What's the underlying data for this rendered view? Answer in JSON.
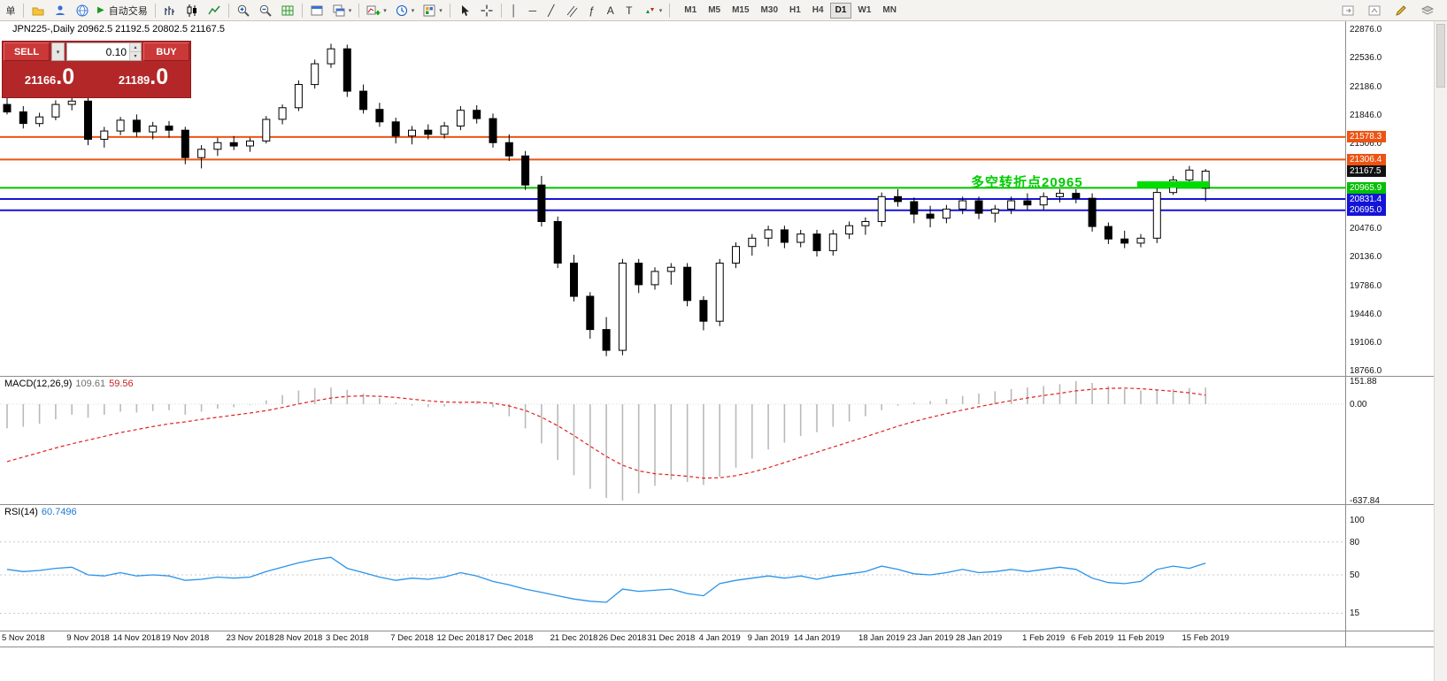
{
  "icons": {
    "dropdown": "▾",
    "play": "▶",
    "vline": "│",
    "hline": "─",
    "trendline": "╱",
    "fibonacci": "ƒ",
    "text_tool": "A",
    "label_tool": "T",
    "spin_up": "▴",
    "spin_down": "▾"
  },
  "toolbar": {
    "order_label": "单",
    "auto_trading_label": "自动交易",
    "timeframes": [
      "M1",
      "M5",
      "M15",
      "M30",
      "H1",
      "H4",
      "D1",
      "W1",
      "MN"
    ],
    "active_timeframe": "D1"
  },
  "chart": {
    "title": "JPN225-,Daily 20962.5 21192.5 20802.5 21167.5",
    "symbol": "JPN225-",
    "period": "Daily",
    "annotation": "多空转折点20965",
    "annotation_color": "#00CC00",
    "trade_panel": {
      "sell_label": "SELL",
      "buy_label": "BUY",
      "lot_value": "0.10",
      "sell_price_small": "21166",
      "sell_price_big": ".0",
      "buy_price_small": "21189",
      "buy_price_big": ".0"
    },
    "y_axis_labels": [
      "22876.0",
      "22536.0",
      "22186.0",
      "21846.0",
      "21506.0",
      "20476.0",
      "20136.0",
      "19786.0",
      "19446.0",
      "19106.0",
      "18766.0"
    ],
    "levels": [
      {
        "label": "21578.3",
        "price": 21578.3,
        "color": "#ED5413",
        "line": true
      },
      {
        "label": "21306.4",
        "price": 21306.4,
        "color": "#ED5413",
        "line": true
      },
      {
        "label": "21167.5",
        "price": 21167.5,
        "color": "#111111",
        "line": false
      },
      {
        "label": "20965.9",
        "price": 20965.9,
        "color": "#00C000",
        "line": true
      },
      {
        "label": "20831.4",
        "price": 20831.4,
        "color": "#1414D8",
        "line": true
      },
      {
        "label": "20695.0",
        "price": 20695.0,
        "color": "#1414D8",
        "line": true
      }
    ],
    "highlight": {
      "from_index": 70,
      "to_index": 74,
      "price_top": 21045,
      "price_bottom": 20966,
      "color": "#00DE00"
    }
  },
  "macd": {
    "name": "MACD(12,26,9)",
    "value_main": "109.61",
    "value_signal": "59.56",
    "axis_labels": [
      "151.88",
      "0.00",
      "-637.84"
    ]
  },
  "rsi": {
    "name": "RSI(14)",
    "value": "60.7496",
    "axis_labels": [
      "100",
      "80",
      "50",
      "15"
    ]
  },
  "chart_data": [
    {
      "type": "candlestick",
      "title": "JPN225- Daily",
      "ohlc_current": {
        "open": 20962.5,
        "high": 21192.5,
        "low": 20802.5,
        "close": 21167.5
      },
      "ylim": [
        18766.0,
        22876.0
      ],
      "x_labels": [
        "5 Nov 2018",
        "9 Nov 2018",
        "14 Nov 2018",
        "19 Nov 2018",
        "23 Nov 2018",
        "28 Nov 2018",
        "3 Dec 2018",
        "7 Dec 2018",
        "12 Dec 2018",
        "17 Dec 2018",
        "21 Dec 2018",
        "26 Dec 2018",
        "31 Dec 2018",
        "4 Jan 2019",
        "9 Jan 2019",
        "14 Jan 2019",
        "18 Jan 2019",
        "23 Jan 2019",
        "28 Jan 2019",
        "1 Feb 2019",
        "6 Feb 2019",
        "11 Feb 2019",
        "15 Feb 2019"
      ],
      "x_label_indices": [
        1,
        5,
        8,
        11,
        15,
        18,
        21,
        25,
        28,
        31,
        35,
        38,
        41,
        44,
        47,
        50,
        54,
        57,
        60,
        64,
        67,
        70,
        74
      ],
      "candles": [
        [
          21970,
          22050,
          21850,
          21880
        ],
        [
          21880,
          21950,
          21680,
          21740
        ],
        [
          21740,
          21870,
          21700,
          21820
        ],
        [
          21820,
          22020,
          21780,
          21970
        ],
        [
          21970,
          22060,
          21900,
          22010
        ],
        [
          22010,
          22050,
          21480,
          21550
        ],
        [
          21550,
          21700,
          21450,
          21650
        ],
        [
          21650,
          21820,
          21600,
          21780
        ],
        [
          21780,
          21850,
          21580,
          21640
        ],
        [
          21640,
          21760,
          21550,
          21710
        ],
        [
          21710,
          21770,
          21570,
          21660
        ],
        [
          21660,
          21700,
          21250,
          21330
        ],
        [
          21330,
          21480,
          21200,
          21430
        ],
        [
          21430,
          21570,
          21350,
          21510
        ],
        [
          21510,
          21590,
          21420,
          21470
        ],
        [
          21470,
          21570,
          21400,
          21530
        ],
        [
          21530,
          21830,
          21500,
          21790
        ],
        [
          21790,
          21970,
          21730,
          21930
        ],
        [
          21930,
          22260,
          21890,
          22210
        ],
        [
          22210,
          22510,
          22160,
          22460
        ],
        [
          22460,
          22700,
          22410,
          22640
        ],
        [
          22640,
          22690,
          22060,
          22130
        ],
        [
          22130,
          22210,
          21860,
          21910
        ],
        [
          21910,
          21990,
          21700,
          21760
        ],
        [
          21760,
          21810,
          21500,
          21590
        ],
        [
          21590,
          21710,
          21490,
          21660
        ],
        [
          21660,
          21730,
          21550,
          21610
        ],
        [
          21610,
          21760,
          21560,
          21710
        ],
        [
          21710,
          21950,
          21660,
          21900
        ],
        [
          21900,
          21960,
          21740,
          21800
        ],
        [
          21800,
          21860,
          21450,
          21510
        ],
        [
          21510,
          21610,
          21290,
          21350
        ],
        [
          21350,
          21410,
          20940,
          21000
        ],
        [
          21000,
          21110,
          20500,
          20560
        ],
        [
          20560,
          20620,
          20000,
          20060
        ],
        [
          20060,
          20160,
          19600,
          19660
        ],
        [
          19660,
          19710,
          19150,
          19260
        ],
        [
          19260,
          19410,
          18940,
          19010
        ],
        [
          19010,
          20110,
          18950,
          20060
        ],
        [
          20060,
          20110,
          19700,
          19800
        ],
        [
          19800,
          20010,
          19740,
          19960
        ],
        [
          19960,
          20060,
          19800,
          20010
        ],
        [
          20010,
          20060,
          19540,
          19610
        ],
        [
          19610,
          19660,
          19250,
          19360
        ],
        [
          19360,
          20110,
          19300,
          20060
        ],
        [
          20060,
          20310,
          20000,
          20260
        ],
        [
          20260,
          20410,
          20150,
          20360
        ],
        [
          20360,
          20510,
          20260,
          20460
        ],
        [
          20460,
          20510,
          20240,
          20310
        ],
        [
          20310,
          20460,
          20250,
          20410
        ],
        [
          20410,
          20460,
          20140,
          20210
        ],
        [
          20210,
          20460,
          20150,
          20410
        ],
        [
          20410,
          20560,
          20350,
          20510
        ],
        [
          20510,
          20610,
          20400,
          20560
        ],
        [
          20560,
          20910,
          20500,
          20860
        ],
        [
          20860,
          20950,
          20740,
          20800
        ],
        [
          20800,
          20850,
          20540,
          20650
        ],
        [
          20650,
          20750,
          20490,
          20600
        ],
        [
          20600,
          20760,
          20540,
          20710
        ],
        [
          20710,
          20860,
          20650,
          20810
        ],
        [
          20810,
          20860,
          20590,
          20660
        ],
        [
          20660,
          20760,
          20550,
          20710
        ],
        [
          20710,
          20860,
          20650,
          20810
        ],
        [
          20810,
          20900,
          20700,
          20760
        ],
        [
          20760,
          20910,
          20700,
          20860
        ],
        [
          20860,
          20950,
          20790,
          20900
        ],
        [
          20900,
          20950,
          20780,
          20840
        ],
        [
          20840,
          20900,
          20440,
          20500
        ],
        [
          20500,
          20550,
          20290,
          20350
        ],
        [
          20350,
          20450,
          20240,
          20300
        ],
        [
          20300,
          20410,
          20250,
          20360
        ],
        [
          20360,
          20960,
          20300,
          20910
        ],
        [
          20910,
          21110,
          20880,
          21060
        ],
        [
          21060,
          21230,
          21000,
          21180
        ],
        [
          20962.5,
          21192.5,
          20802.5,
          21167.5
        ]
      ]
    },
    {
      "type": "bar",
      "name": "MACD(12,26,9)",
      "ylim": [
        -637.84,
        151.88
      ],
      "current": {
        "macd": 109.61,
        "signal": 59.56
      },
      "histogram": [
        -160,
        -150,
        -130,
        -100,
        -70,
        -90,
        -70,
        -50,
        -55,
        -45,
        -40,
        -70,
        -50,
        -30,
        -20,
        -5,
        25,
        60,
        90,
        105,
        110,
        95,
        70,
        40,
        10,
        -10,
        -20,
        -15,
        5,
        20,
        -20,
        -80,
        -160,
        -260,
        -370,
        -470,
        -560,
        -620,
        -637.84,
        -590,
        -540,
        -500,
        -515,
        -535,
        -480,
        -420,
        -360,
        -300,
        -255,
        -210,
        -185,
        -150,
        -115,
        -80,
        -40,
        -10,
        10,
        20,
        35,
        55,
        70,
        85,
        100,
        110,
        120,
        132,
        151.88,
        140,
        120,
        100,
        90,
        92,
        100,
        106,
        109.61
      ],
      "signal": [
        -380,
        -350,
        -320,
        -290,
        -262,
        -238,
        -213,
        -188,
        -168,
        -148,
        -130,
        -117,
        -101,
        -87,
        -73,
        -59,
        -43,
        -22,
        1,
        22,
        40,
        51,
        55,
        52,
        44,
        33,
        22,
        14,
        12,
        13,
        6,
        -12,
        -42,
        -86,
        -143,
        -208,
        -278,
        -346,
        -404,
        -441,
        -460,
        -468,
        -477,
        -489,
        -487,
        -473,
        -450,
        -420,
        -387,
        -351,
        -318,
        -284,
        -250,
        -216,
        -181,
        -146,
        -115,
        -88,
        -63,
        -39,
        -17,
        4,
        23,
        41,
        57,
        72,
        88,
        98,
        104,
        106,
        102,
        94,
        85,
        75,
        59.56
      ]
    },
    {
      "type": "line",
      "name": "RSI(14)",
      "ylim": [
        0,
        100
      ],
      "levels": [
        80,
        50,
        15
      ],
      "current": 60.7496,
      "values": [
        55,
        53,
        54,
        56,
        57,
        50,
        49,
        52,
        49,
        50,
        49,
        45,
        46,
        48,
        47,
        48,
        53,
        57,
        61,
        64,
        66,
        56,
        52,
        48,
        45,
        47,
        46,
        48,
        52,
        49,
        44,
        41,
        37,
        34,
        31,
        28,
        26,
        25,
        37,
        35,
        36,
        37,
        33,
        31,
        42,
        45,
        47,
        49,
        47,
        49,
        46,
        49,
        51,
        53,
        58,
        55,
        51,
        50,
        52,
        55,
        52,
        53,
        55,
        53,
        55,
        57,
        55,
        47,
        43,
        42,
        44,
        55,
        58,
        56,
        60.75
      ]
    }
  ]
}
